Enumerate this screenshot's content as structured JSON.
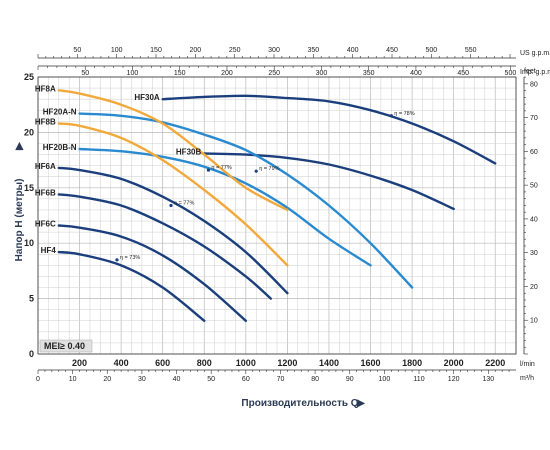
{
  "chart_data": {
    "type": "line",
    "ylabel": "Напор H (метры)",
    "xlabel": "Производительность Q",
    "x_unit": "l/min",
    "y_right_unit": "feet",
    "top_axis_1_unit": "US g.p.m.",
    "top_axis_2_unit": "Imp. g.p.m.",
    "bottom_axis_2_unit": "m³/h",
    "xlim": [
      0,
      2300
    ],
    "ylim": [
      0,
      25
    ],
    "x_ticks": [
      200,
      400,
      600,
      800,
      1000,
      1200,
      1400,
      1600,
      1800,
      2000,
      2200
    ],
    "y_ticks": [
      5,
      10,
      15,
      20,
      25
    ],
    "y_right_ticks": [
      10,
      20,
      30,
      40,
      50,
      60,
      70,
      80
    ],
    "us_gpm_ticks": [
      50,
      100,
      150,
      200,
      250,
      300,
      350,
      400,
      450,
      500,
      550
    ],
    "imp_gpm_ticks": [
      50,
      100,
      150,
      200,
      250,
      300,
      350,
      400,
      450,
      500
    ],
    "m3h_ticks": [
      10,
      20,
      30,
      40,
      50,
      60,
      70,
      80,
      90,
      100,
      110,
      120,
      130
    ],
    "mei_label": "MEI≥ 0.40",
    "grid": true,
    "series": [
      {
        "name": "HF30A",
        "color": "#1b3f7d",
        "x": [
          600,
          800,
          1000,
          1200,
          1400,
          1600,
          1800,
          2000,
          2200
        ],
        "y": [
          23.0,
          23.2,
          23.3,
          23.1,
          22.8,
          22.0,
          20.8,
          19.2,
          17.2
        ]
      },
      {
        "name": "HF30B",
        "color": "#1b3f7d",
        "x": [
          800,
          1000,
          1200,
          1400,
          1600,
          1800,
          2000
        ],
        "y": [
          18.1,
          18.0,
          17.7,
          17.1,
          16.1,
          14.8,
          13.1
        ]
      },
      {
        "name": "HF20A-N",
        "color": "#2a8ad0",
        "x": [
          200,
          400,
          600,
          800,
          1000,
          1200,
          1400,
          1600,
          1800
        ],
        "y": [
          21.7,
          21.5,
          20.9,
          19.8,
          18.4,
          16.2,
          13.4,
          10.0,
          6.0
        ]
      },
      {
        "name": "HF20B-N",
        "color": "#2a8ad0",
        "x": [
          200,
          400,
          600,
          800,
          1000,
          1200,
          1400,
          1600
        ],
        "y": [
          18.5,
          18.3,
          17.8,
          16.9,
          15.4,
          13.2,
          10.4,
          8.0
        ]
      },
      {
        "name": "HF8A",
        "color": "#f2a93b",
        "x": [
          100,
          200,
          400,
          600,
          800,
          1000,
          1200
        ],
        "y": [
          23.8,
          23.5,
          22.5,
          20.8,
          18.0,
          15.0,
          13.0
        ]
      },
      {
        "name": "HF8B",
        "color": "#f2a93b",
        "x": [
          100,
          200,
          400,
          600,
          800,
          1000,
          1200
        ],
        "y": [
          20.8,
          20.6,
          19.5,
          17.5,
          14.8,
          11.7,
          8.0
        ]
      },
      {
        "name": "HF6A",
        "color": "#1b3f7d",
        "x": [
          100,
          200,
          400,
          600,
          800,
          1000,
          1200
        ],
        "y": [
          16.8,
          16.6,
          15.8,
          14.2,
          12.0,
          9.2,
          5.5
        ]
      },
      {
        "name": "HF6B",
        "color": "#1b3f7d",
        "x": [
          100,
          200,
          400,
          600,
          800,
          1000,
          1120
        ],
        "y": [
          14.4,
          14.2,
          13.4,
          11.8,
          9.7,
          7.0,
          5.0
        ]
      },
      {
        "name": "HF6C",
        "color": "#1b3f7d",
        "x": [
          100,
          200,
          400,
          600,
          800,
          1000
        ],
        "y": [
          11.6,
          11.4,
          10.6,
          8.9,
          6.3,
          3.0
        ]
      },
      {
        "name": "HF4",
        "color": "#1b3f7d",
        "x": [
          100,
          200,
          400,
          600,
          800
        ],
        "y": [
          9.2,
          9.0,
          8.0,
          6.0,
          3.0
        ]
      }
    ],
    "annotations": [
      {
        "text": "η = 78%",
        "x": 1700,
        "y": 21.5
      },
      {
        "text": "η = 79%",
        "x": 1050,
        "y": 16.5
      },
      {
        "text": "η = 77%",
        "x": 820,
        "y": 16.6
      },
      {
        "text": "η = 77%",
        "x": 640,
        "y": 13.4
      },
      {
        "text": "η = 73%",
        "x": 380,
        "y": 8.5
      }
    ]
  }
}
